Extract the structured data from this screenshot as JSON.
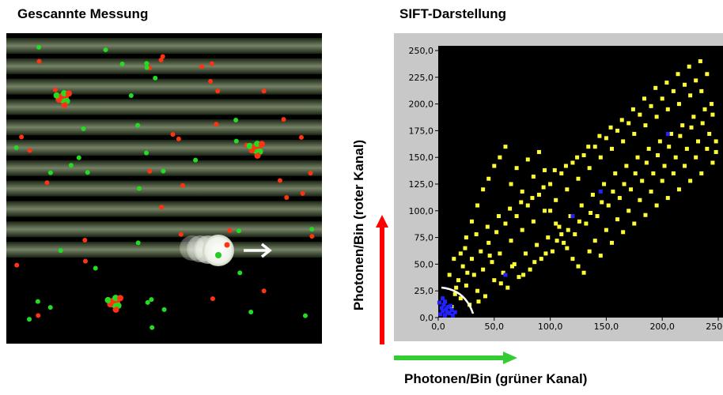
{
  "left_panel": {
    "title": "Gescannte Messung"
  },
  "chart_data": {
    "type": "scatter",
    "title": "SIFT-Darstellung",
    "xlabel": "Photonen/Bin (grüner Kanal)",
    "ylabel": "Photonen/Bin (roter Kanal)",
    "xlim": [
      0,
      250
    ],
    "ylim": [
      0,
      250
    ],
    "x_ticks": [
      "0,0",
      "50,0",
      "100,0",
      "150,0",
      "200,0",
      "250,0"
    ],
    "y_ticks": [
      "0,0",
      "25,0",
      "50,0",
      "75,0",
      "100,0",
      "125,0",
      "150,0",
      "175,0",
      "200,0",
      "225,0",
      "250,0"
    ],
    "background": "#000000",
    "series": [
      {
        "color": "#ffff33",
        "points": [
          [
            12,
            10
          ],
          [
            15,
            22
          ],
          [
            18,
            35
          ],
          [
            20,
            18
          ],
          [
            22,
            48
          ],
          [
            25,
            30
          ],
          [
            28,
            12
          ],
          [
            30,
            55
          ],
          [
            32,
            40
          ],
          [
            35,
            25
          ],
          [
            38,
            62
          ],
          [
            40,
            45
          ],
          [
            42,
            20
          ],
          [
            45,
            70
          ],
          [
            48,
            52
          ],
          [
            50,
            35
          ],
          [
            52,
            80
          ],
          [
            55,
            60
          ],
          [
            58,
            42
          ],
          [
            60,
            88
          ],
          [
            62,
            28
          ],
          [
            65,
            72
          ],
          [
            68,
            50
          ],
          [
            70,
            95
          ],
          [
            72,
            38
          ],
          [
            75,
            82
          ],
          [
            78,
            60
          ],
          [
            80,
            105
          ],
          [
            82,
            45
          ],
          [
            85,
            90
          ],
          [
            88,
            68
          ],
          [
            90,
            115
          ],
          [
            92,
            55
          ],
          [
            95,
            100
          ],
          [
            98,
            75
          ],
          [
            100,
            125
          ],
          [
            102,
            62
          ],
          [
            105,
            110
          ],
          [
            108,
            85
          ],
          [
            110,
            135
          ],
          [
            112,
            70
          ],
          [
            115,
            120
          ],
          [
            118,
            95
          ],
          [
            120,
            145
          ],
          [
            122,
            78
          ],
          [
            125,
            130
          ],
          [
            128,
            105
          ],
          [
            130,
            152
          ],
          [
            132,
            88
          ],
          [
            135,
            140
          ],
          [
            138,
            115
          ],
          [
            140,
            160
          ],
          [
            142,
            95
          ],
          [
            145,
            150
          ],
          [
            148,
            125
          ],
          [
            150,
            168
          ],
          [
            152,
            105
          ],
          [
            155,
            158
          ],
          [
            158,
            135
          ],
          [
            160,
            175
          ],
          [
            162,
            112
          ],
          [
            165,
            165
          ],
          [
            168,
            142
          ],
          [
            170,
            182
          ],
          [
            172,
            120
          ],
          [
            175,
            172
          ],
          [
            178,
            150
          ],
          [
            180,
            190
          ],
          [
            182,
            128
          ],
          [
            185,
            180
          ],
          [
            188,
            158
          ],
          [
            190,
            198
          ],
          [
            192,
            135
          ],
          [
            195,
            188
          ],
          [
            198,
            165
          ],
          [
            200,
            205
          ],
          [
            202,
            142
          ],
          [
            205,
            195
          ],
          [
            208,
            172
          ],
          [
            210,
            212
          ],
          [
            212,
            150
          ],
          [
            215,
            200
          ],
          [
            218,
            180
          ],
          [
            220,
            218
          ],
          [
            222,
            158
          ],
          [
            225,
            208
          ],
          [
            228,
            188
          ],
          [
            230,
            222
          ],
          [
            232,
            165
          ],
          [
            235,
            212
          ],
          [
            238,
            195
          ],
          [
            240,
            228
          ],
          [
            242,
            172
          ],
          [
            245,
            190
          ],
          [
            248,
            155
          ],
          [
            20,
            60
          ],
          [
            25,
            75
          ],
          [
            30,
            90
          ],
          [
            35,
            105
          ],
          [
            40,
            120
          ],
          [
            45,
            130
          ],
          [
            50,
            142
          ],
          [
            55,
            150
          ],
          [
            60,
            160
          ],
          [
            65,
            125
          ],
          [
            70,
            140
          ],
          [
            75,
            118
          ],
          [
            80,
            148
          ],
          [
            85,
            132
          ],
          [
            90,
            155
          ],
          [
            95,
            138
          ],
          [
            100,
            100
          ],
          [
            105,
            88
          ],
          [
            110,
            78
          ],
          [
            115,
            65
          ],
          [
            120,
            55
          ],
          [
            125,
            48
          ],
          [
            130,
            42
          ],
          [
            135,
            62
          ],
          [
            140,
            72
          ],
          [
            145,
            58
          ],
          [
            150,
            82
          ],
          [
            155,
            70
          ],
          [
            160,
            92
          ],
          [
            165,
            80
          ],
          [
            170,
            100
          ],
          [
            175,
            88
          ],
          [
            180,
            110
          ],
          [
            185,
            96
          ],
          [
            190,
            118
          ],
          [
            195,
            105
          ],
          [
            200,
            128
          ],
          [
            205,
            112
          ],
          [
            210,
            135
          ],
          [
            215,
            120
          ],
          [
            220,
            142
          ],
          [
            225,
            128
          ],
          [
            230,
            150
          ],
          [
            235,
            135
          ],
          [
            240,
            158
          ],
          [
            245,
            145
          ],
          [
            248,
            165
          ],
          [
            10,
            40
          ],
          [
            14,
            55
          ],
          [
            16,
            28
          ],
          [
            24,
            65
          ],
          [
            26,
            42
          ],
          [
            34,
            78
          ],
          [
            36,
            15
          ],
          [
            44,
            85
          ],
          [
            46,
            58
          ],
          [
            54,
            95
          ],
          [
            56,
            32
          ],
          [
            64,
            102
          ],
          [
            66,
            48
          ],
          [
            74,
            108
          ],
          [
            76,
            40
          ],
          [
            84,
            112
          ],
          [
            86,
            52
          ],
          [
            94,
            122
          ],
          [
            96,
            60
          ],
          [
            104,
            138
          ],
          [
            106,
            72
          ],
          [
            114,
            142
          ],
          [
            116,
            82
          ],
          [
            124,
            150
          ],
          [
            126,
            90
          ],
          [
            134,
            160
          ],
          [
            136,
            98
          ],
          [
            144,
            170
          ],
          [
            146,
            108
          ],
          [
            154,
            178
          ],
          [
            156,
            118
          ],
          [
            164,
            185
          ],
          [
            166,
            125
          ],
          [
            174,
            195
          ],
          [
            176,
            135
          ],
          [
            184,
            205
          ],
          [
            186,
            145
          ],
          [
            194,
            215
          ],
          [
            196,
            152
          ],
          [
            204,
            220
          ],
          [
            206,
            160
          ],
          [
            214,
            228
          ],
          [
            216,
            170
          ],
          [
            224,
            235
          ],
          [
            226,
            178
          ],
          [
            234,
            240
          ],
          [
            236,
            182
          ],
          [
            244,
            200
          ]
        ]
      },
      {
        "color": "#2222ff",
        "points": [
          [
            2,
            3
          ],
          [
            4,
            6
          ],
          [
            6,
            2
          ],
          [
            8,
            5
          ],
          [
            3,
            9
          ],
          [
            5,
            12
          ],
          [
            7,
            8
          ],
          [
            10,
            4
          ],
          [
            12,
            7
          ],
          [
            9,
            10
          ],
          [
            1,
            14
          ],
          [
            6,
            15
          ],
          [
            11,
            11
          ],
          [
            13,
            2
          ],
          [
            15,
            5
          ],
          [
            4,
            18
          ],
          [
            60,
            40
          ],
          [
            120,
            95
          ],
          [
            145,
            118
          ],
          [
            205,
            172
          ]
        ]
      }
    ]
  }
}
